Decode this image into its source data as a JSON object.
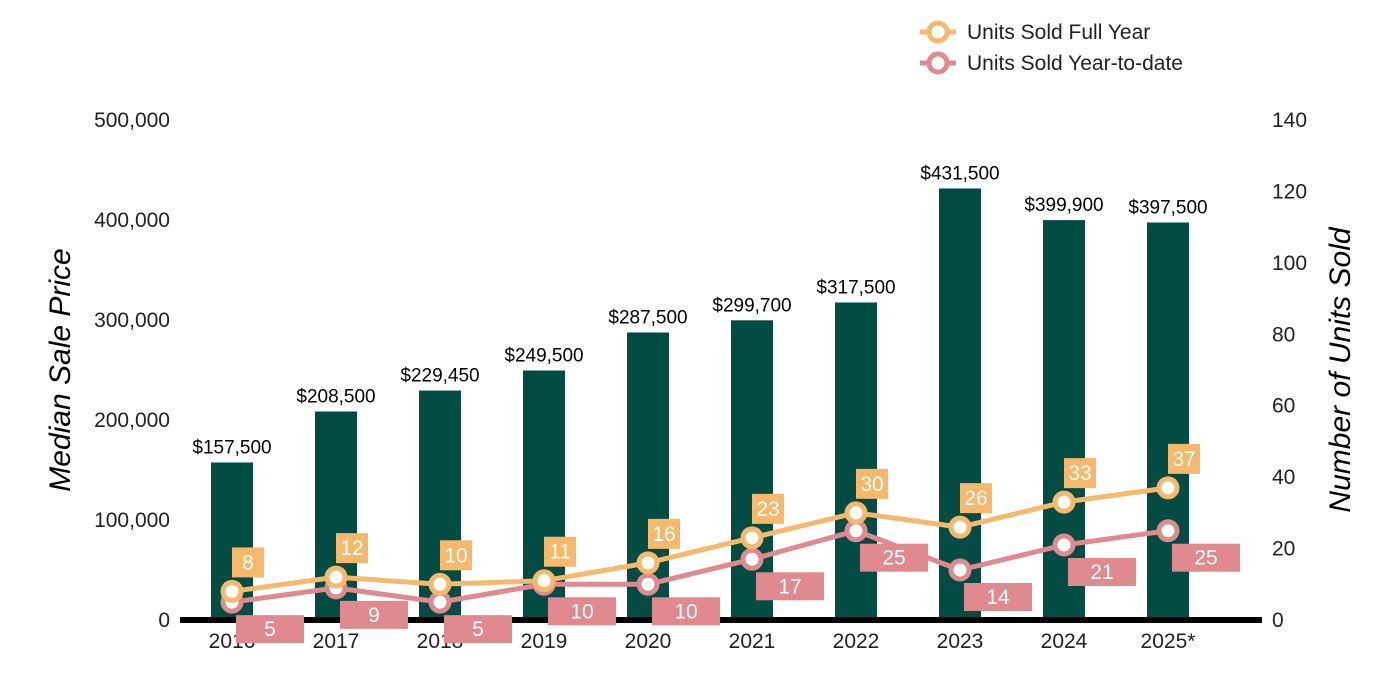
{
  "colors": {
    "bar": "#034c43",
    "full_year": "#f6b96b",
    "ytd": "#e0898e",
    "baseline": "#000000"
  },
  "chart_data": {
    "type": "bar",
    "categories": [
      "2016",
      "2017",
      "2018",
      "2019",
      "2020",
      "2021",
      "2022",
      "2023",
      "2024",
      "2025*"
    ],
    "y_left": {
      "label": "Median Sale Price",
      "range": [
        0,
        500000
      ],
      "ticks": [
        "0",
        "100,000",
        "200,000",
        "300,000",
        "400,000",
        "500,000"
      ]
    },
    "y_right": {
      "label": "Number of Units Sold",
      "range": [
        0,
        140
      ],
      "ticks": [
        "0",
        "20",
        "40",
        "60",
        "80",
        "100",
        "120",
        "140"
      ]
    },
    "bars": {
      "axis": "left",
      "values": [
        157500,
        208500,
        229450,
        249500,
        287500,
        299700,
        317500,
        431500,
        399900,
        397500
      ],
      "labels": [
        "$157,500",
        "$208,500",
        "$229,450",
        "$249,500",
        "$287,500",
        "$299,700",
        "$317,500",
        "$431,500",
        "$399,900",
        "$397,500"
      ]
    },
    "series": [
      {
        "name": "Units Sold Full Year",
        "type": "line",
        "axis": "right",
        "values": [
          8,
          12,
          10,
          11,
          16,
          23,
          30,
          26,
          33,
          37
        ]
      },
      {
        "name": "Units Sold Year-to-date",
        "type": "line",
        "axis": "right",
        "values": [
          5,
          9,
          5,
          10,
          10,
          17,
          25,
          14,
          21,
          25
        ]
      }
    ],
    "legend": "top-right",
    "grid": false
  }
}
